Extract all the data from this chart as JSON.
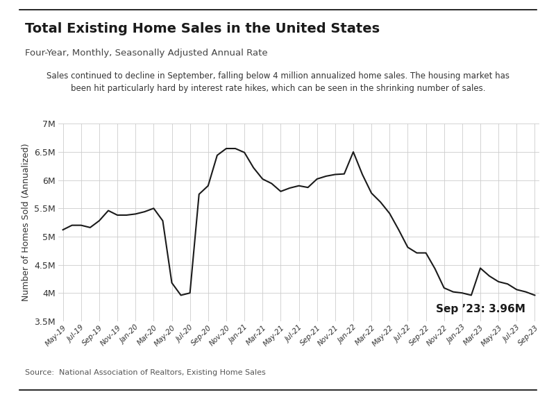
{
  "title": "Total Existing Home Sales in the United States",
  "subtitle": "Four-Year, Monthly, Seasonally Adjusted Annual Rate",
  "annotation_line1": "Sales continued to decline in September, falling below 4 million annualized home sales. The housing market has",
  "annotation_line2": "been hit particularly hard by interest rate hikes, which can be seen in the shrinking number of sales.",
  "source": "Source:  National Association of Realtors, Existing Home Sales",
  "ylabel": "Number of Homes Sold (Annualized)",
  "last_label": "Sep ’23: 3.96M",
  "ylim": [
    3500000,
    7000000
  ],
  "yticks": [
    3500000,
    4000000,
    4500000,
    5000000,
    5500000,
    6000000,
    6500000,
    7000000
  ],
  "ytick_labels": [
    "3.5M",
    "4M",
    "4.5M",
    "5M",
    "5.5M",
    "6M",
    "6.5M",
    "7M"
  ],
  "xtick_labels": [
    "May-19",
    "Jul-19",
    "Sep-19",
    "Nov-19",
    "Jan-20",
    "Mar-20",
    "May-20",
    "Jul-20",
    "Sep-20",
    "Nov-20",
    "Jan-21",
    "Mar-21",
    "May-21",
    "Jul-21",
    "Sep-21",
    "Nov-21",
    "Jan-22",
    "Mar-22",
    "May-22",
    "Jul-22",
    "Sep-22",
    "Nov-22",
    "Jan-23",
    "Mar-23",
    "May-23",
    "Jul-23",
    "Sep-23"
  ],
  "line_color": "#1a1a1a",
  "background_color": "#ffffff",
  "grid_color": "#cccccc",
  "monthly_values": [
    5120000,
    5200000,
    5200000,
    5160000,
    5280000,
    5460000,
    5380000,
    5380000,
    5400000,
    5440000,
    5500000,
    5280000,
    4180000,
    3960000,
    4000000,
    5750000,
    5900000,
    6440000,
    6560000,
    6560000,
    6490000,
    6220000,
    6020000,
    5940000,
    5800000,
    5860000,
    5900000,
    5870000,
    6020000,
    6070000,
    6100000,
    6110000,
    6500000,
    6100000,
    5770000,
    5610000,
    5410000,
    5120000,
    4810000,
    4710000,
    4710000,
    4430000,
    4090000,
    4020000,
    4000000,
    3960000,
    4440000,
    4300000,
    4200000,
    4160000,
    4060000,
    4020000,
    3960000
  ]
}
